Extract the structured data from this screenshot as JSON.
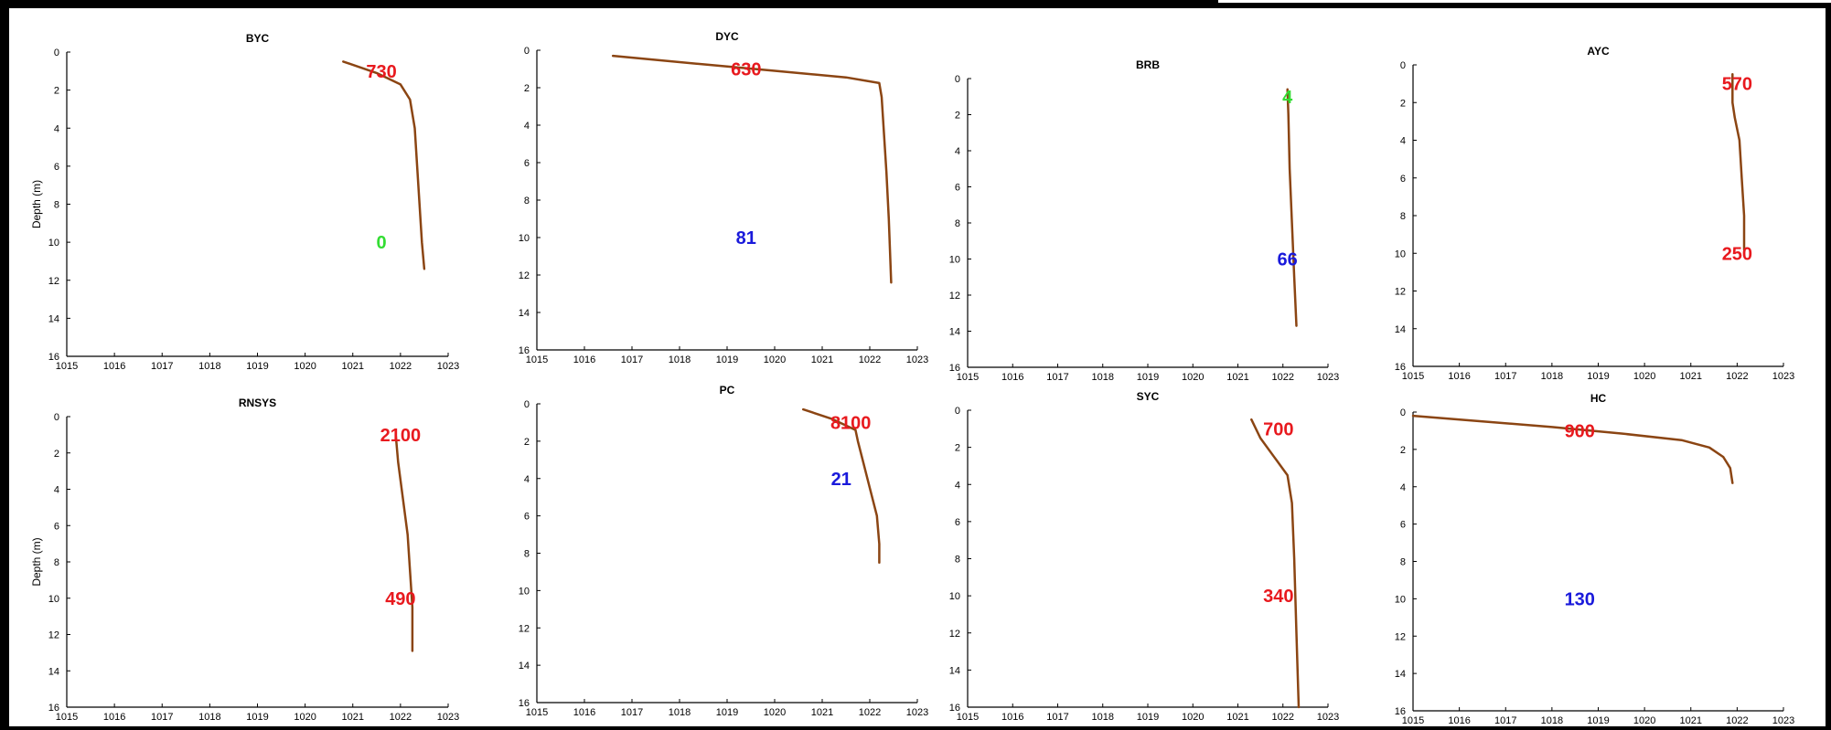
{
  "figure": {
    "panels": [
      {
        "title": "BYC",
        "ylabel": "Depth (m)",
        "x_ticks": [
          "1015",
          "1016",
          "1017",
          "1018",
          "1019",
          "1020",
          "1021",
          "1022",
          "1023"
        ],
        "y_ticks": [
          "0",
          "2",
          "4",
          "6",
          "8",
          "10",
          "12",
          "14",
          "16"
        ],
        "annotations": [
          {
            "text": "730",
            "color": "#e8191e",
            "x": 1021.6,
            "y": 1.0
          },
          {
            "text": "0",
            "color": "#33dd33",
            "x": 1021.6,
            "y": 10.0
          }
        ]
      },
      {
        "title": "DYC",
        "ylabel": "",
        "x_ticks": [
          "1015",
          "1016",
          "1017",
          "1018",
          "1019",
          "1020",
          "1021",
          "1022",
          "1023"
        ],
        "y_ticks": [
          "0",
          "2",
          "4",
          "6",
          "8",
          "10",
          "12",
          "14",
          "16"
        ],
        "annotations": [
          {
            "text": "630",
            "color": "#e8191e",
            "x": 1019.4,
            "y": 1.0
          },
          {
            "text": "81",
            "color": "#1a1adb",
            "x": 1019.4,
            "y": 10.0
          }
        ]
      },
      {
        "title": "BRB",
        "ylabel": "",
        "x_ticks": [
          "1015",
          "1016",
          "1017",
          "1018",
          "1019",
          "1020",
          "1021",
          "1022",
          "1023"
        ],
        "y_ticks": [
          "0",
          "2",
          "4",
          "6",
          "8",
          "10",
          "12",
          "14",
          "16"
        ],
        "annotations": [
          {
            "text": "4",
            "color": "#33dd33",
            "x": 1022.1,
            "y": 1.0
          },
          {
            "text": "66",
            "color": "#1a1adb",
            "x": 1022.1,
            "y": 10.0
          }
        ]
      },
      {
        "title": "AYC",
        "ylabel": "",
        "x_ticks": [
          "1015",
          "1016",
          "1017",
          "1018",
          "1019",
          "1020",
          "1021",
          "1022",
          "1023"
        ],
        "y_ticks": [
          "0",
          "2",
          "4",
          "6",
          "8",
          "10",
          "12",
          "14",
          "16"
        ],
        "annotations": [
          {
            "text": "570",
            "color": "#e8191e",
            "x": 1022.0,
            "y": 1.0
          },
          {
            "text": "250",
            "color": "#e8191e",
            "x": 1022.0,
            "y": 10.0
          }
        ]
      },
      {
        "title": "RNSYS",
        "ylabel": "Depth (m)",
        "x_ticks": [
          "1015",
          "1016",
          "1017",
          "1018",
          "1019",
          "1020",
          "1021",
          "1022",
          "1023"
        ],
        "y_ticks": [
          "0",
          "2",
          "4",
          "6",
          "8",
          "10",
          "12",
          "14",
          "16"
        ],
        "annotations": [
          {
            "text": "2100",
            "color": "#e8191e",
            "x": 1022.0,
            "y": 1.0
          },
          {
            "text": "490",
            "color": "#e8191e",
            "x": 1022.0,
            "y": 10.0
          }
        ]
      },
      {
        "title": "PC",
        "ylabel": "",
        "x_ticks": [
          "1015",
          "1016",
          "1017",
          "1018",
          "1019",
          "1020",
          "1021",
          "1022",
          "1023"
        ],
        "y_ticks": [
          "0",
          "2",
          "4",
          "6",
          "8",
          "10",
          "12",
          "14",
          "16"
        ],
        "annotations": [
          {
            "text": "8100",
            "color": "#e8191e",
            "x": 1021.6,
            "y": 1.0
          },
          {
            "text": "21",
            "color": "#1a1adb",
            "x": 1021.4,
            "y": 4.0
          }
        ]
      },
      {
        "title": "SYC",
        "ylabel": "",
        "x_ticks": [
          "1015",
          "1016",
          "1017",
          "1018",
          "1019",
          "1020",
          "1021",
          "1022",
          "1023"
        ],
        "y_ticks": [
          "0",
          "2",
          "4",
          "6",
          "8",
          "10",
          "12",
          "14",
          "16"
        ],
        "annotations": [
          {
            "text": "700",
            "color": "#e8191e",
            "x": 1021.9,
            "y": 1.0
          },
          {
            "text": "340",
            "color": "#e8191e",
            "x": 1021.9,
            "y": 10.0
          }
        ]
      },
      {
        "title": "HC",
        "ylabel": "",
        "x_ticks": [
          "1015",
          "1016",
          "1017",
          "1018",
          "1019",
          "1020",
          "1021",
          "1022",
          "1023"
        ],
        "y_ticks": [
          "0",
          "2",
          "4",
          "6",
          "8",
          "10",
          "12",
          "14",
          "16"
        ],
        "annotations": [
          {
            "text": "900",
            "color": "#e8191e",
            "x": 1018.6,
            "y": 1.0
          },
          {
            "text": "130",
            "color": "#1a1adb",
            "x": 1018.6,
            "y": 10.0
          }
        ]
      }
    ]
  },
  "chart_data": [
    {
      "type": "line",
      "title": "BYC",
      "xlabel": "",
      "ylabel": "Depth (m)",
      "xlim": [
        1015,
        1023
      ],
      "ylim": [
        16,
        0
      ],
      "line_color": "#8b4513",
      "series": [
        {
          "x": [
            1020.8,
            1021.5,
            1022.0,
            1022.2,
            1022.3,
            1022.35,
            1022.4,
            1022.45,
            1022.5
          ],
          "y": [
            0.5,
            1.1,
            1.7,
            2.5,
            4.0,
            6.0,
            8.0,
            10.0,
            11.4
          ]
        }
      ]
    },
    {
      "type": "line",
      "title": "DYC",
      "xlabel": "",
      "ylabel": "",
      "xlim": [
        1015,
        1023
      ],
      "ylim": [
        16,
        0
      ],
      "line_color": "#8b4513",
      "series": [
        {
          "x": [
            1016.6,
            1018.5,
            1020.0,
            1021.5,
            1022.2,
            1022.25,
            1022.3,
            1022.35,
            1022.4,
            1022.45
          ],
          "y": [
            0.3,
            0.75,
            1.1,
            1.45,
            1.75,
            2.5,
            4.5,
            6.5,
            9.0,
            12.4
          ]
        }
      ]
    },
    {
      "type": "line",
      "title": "BRB",
      "xlabel": "",
      "ylabel": "",
      "xlim": [
        1015,
        1023
      ],
      "ylim": [
        16,
        0
      ],
      "line_color": "#8b4513",
      "series": [
        {
          "x": [
            1022.1,
            1022.12,
            1022.15,
            1022.2,
            1022.25,
            1022.3
          ],
          "y": [
            0.6,
            2.0,
            5.0,
            8.0,
            11.0,
            13.7
          ]
        }
      ]
    },
    {
      "type": "line",
      "title": "AYC",
      "xlabel": "",
      "ylabel": "",
      "xlim": [
        1015,
        1023
      ],
      "ylim": [
        16,
        0
      ],
      "line_color": "#8b4513",
      "series": [
        {
          "x": [
            1021.9,
            1021.9,
            1021.95,
            1022.05,
            1022.1,
            1022.15,
            1022.15
          ],
          "y": [
            0.5,
            2.0,
            2.8,
            4.0,
            6.0,
            8.0,
            9.8
          ]
        }
      ]
    },
    {
      "type": "line",
      "title": "RNSYS",
      "xlabel": "",
      "ylabel": "Depth (m)",
      "xlim": [
        1015,
        1023
      ],
      "ylim": [
        16,
        0
      ],
      "line_color": "#8b4513",
      "series": [
        {
          "x": [
            1021.9,
            1021.95,
            1022.05,
            1022.15,
            1022.2,
            1022.25,
            1022.25
          ],
          "y": [
            1.0,
            2.5,
            4.5,
            6.5,
            8.5,
            10.5,
            12.9
          ]
        }
      ]
    },
    {
      "type": "line",
      "title": "PC",
      "xlabel": "",
      "ylabel": "",
      "xlim": [
        1015,
        1023
      ],
      "ylim": [
        16,
        0
      ],
      "line_color": "#8b4513",
      "series": [
        {
          "x": [
            1020.6,
            1021.2,
            1021.7,
            1021.75,
            1021.85,
            1022.0,
            1022.15,
            1022.2,
            1022.2
          ],
          "y": [
            0.3,
            0.8,
            1.4,
            2.0,
            3.0,
            4.5,
            6.0,
            7.5,
            8.5
          ]
        }
      ]
    },
    {
      "type": "line",
      "title": "SYC",
      "xlabel": "",
      "ylabel": "",
      "xlim": [
        1015,
        1023
      ],
      "ylim": [
        16,
        0
      ],
      "line_color": "#8b4513",
      "series": [
        {
          "x": [
            1021.3,
            1021.5,
            1021.8,
            1022.1,
            1022.2,
            1022.25,
            1022.3,
            1022.35
          ],
          "y": [
            0.5,
            1.5,
            2.5,
            3.5,
            5.0,
            8.0,
            12.0,
            16.0
          ]
        }
      ]
    },
    {
      "type": "line",
      "title": "HC",
      "xlabel": "",
      "ylabel": "",
      "xlim": [
        1015,
        1023
      ],
      "ylim": [
        16,
        0
      ],
      "line_color": "#8b4513",
      "series": [
        {
          "x": [
            1015.0,
            1016.5,
            1018.0,
            1019.5,
            1020.8,
            1021.4,
            1021.7,
            1021.85,
            1021.9
          ],
          "y": [
            0.2,
            0.5,
            0.8,
            1.15,
            1.5,
            1.9,
            2.4,
            3.0,
            3.8
          ]
        }
      ]
    }
  ]
}
